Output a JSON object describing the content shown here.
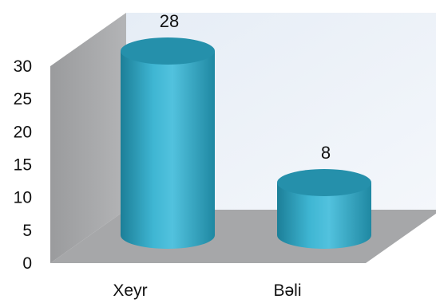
{
  "chart_data": {
    "type": "bar",
    "style": "3d-cylinder",
    "categories": [
      "Xeyr",
      "Bəli"
    ],
    "values": [
      28,
      8
    ],
    "data_labels": [
      "28",
      "8"
    ],
    "ylim": [
      0,
      30
    ],
    "yticks": [
      "0",
      "5",
      "10",
      "15",
      "20",
      "25",
      "30"
    ],
    "title": "",
    "xlabel": "",
    "ylabel": "",
    "grid": false,
    "legend": "none",
    "colors": {
      "bar": "#2aa6c4",
      "bar_dark": "#1c7f98",
      "bar_light": "#52c2de",
      "top": "#2590ab",
      "back_wall": "#eef3f9",
      "side_wall": "#a9aaac",
      "floor": "#a6a7a9"
    }
  }
}
